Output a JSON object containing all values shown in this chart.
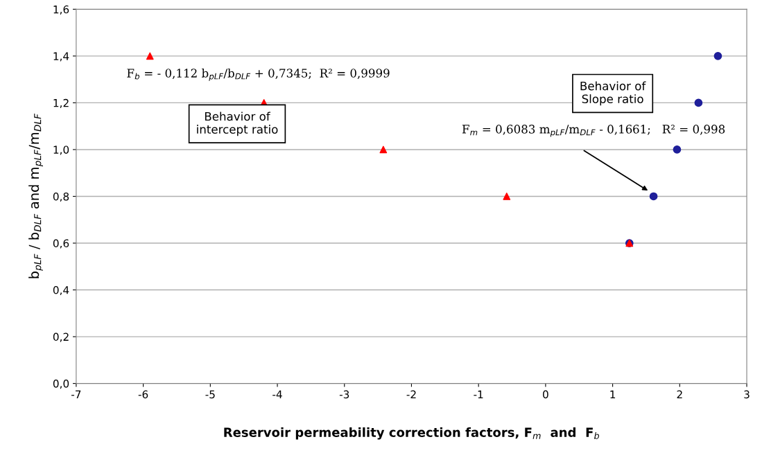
{
  "chart_data": {
    "type": "scatter",
    "xlabel": "Reservoir permeability correction factors, F$_{m}$  and  F$_{b}$",
    "ylabel": "b$_{pLF}$ / b$_{DLF}$ and m$_{pLF}$/m$_{DLF}$",
    "series": [
      {
        "color": "#ff0000",
        "marker": "triangle",
        "x": [
          -5.9,
          -4.2,
          -2.42,
          -0.58,
          1.25
        ],
        "values": [
          1.4,
          1.2,
          1.0,
          0.8,
          0.6
        ]
      },
      {
        "color": "#1f1f9a",
        "marker": "circle",
        "x": [
          1.25,
          1.61,
          1.96,
          2.28,
          2.57
        ],
        "values": [
          0.6,
          0.8,
          1.0,
          1.2,
          1.4
        ]
      }
    ],
    "xlim": [
      -7,
      3
    ],
    "xticks": [
      -7,
      -6,
      -5,
      -4,
      -3,
      -2,
      -1,
      0,
      1,
      2,
      3
    ],
    "ylim": [
      0,
      1.6
    ],
    "yticks": [
      {
        "value": 0,
        "label": "0,0"
      },
      {
        "value": 0.2,
        "label": "0,2"
      },
      {
        "value": 0.4,
        "label": "0,4"
      },
      {
        "value": 0.6,
        "label": "0,6"
      },
      {
        "value": 0.8,
        "label": "0,8"
      },
      {
        "value": 1.0,
        "label": "1,0"
      },
      {
        "value": 1.2,
        "label": "1,2"
      },
      {
        "value": 1.4,
        "label": "1,4"
      },
      {
        "value": 1.6,
        "label": "1,6"
      }
    ],
    "grid": "y",
    "annotations": [
      "F$_{b}$ = - 0,112 b$_{pLF}$/b$_{DLF}$ + 0,7345;  R² = 0,9999",
      "Behavior of\nintercept ratio",
      "Behavior of\nSlope ratio",
      "F$_{m}$ = 0,6083 m$_{pLF}$/m$_{DLF}$ - 0,1661;   R² = 0,998"
    ]
  }
}
